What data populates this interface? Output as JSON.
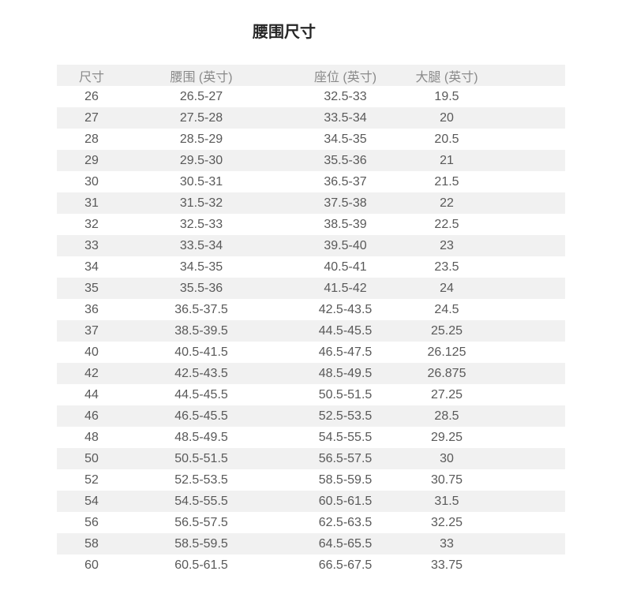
{
  "page": {
    "title": "腰围尺寸"
  },
  "colors": {
    "stripe_bg": "#f1f1f1",
    "header_text": "#8a8a8a",
    "body_text": "#595959",
    "title_text": "#262626"
  },
  "table": {
    "headers": [
      "尺寸",
      "腰围 (英寸)",
      "座位 (英寸)",
      "大腿 (英寸)"
    ],
    "rows": [
      [
        "26",
        "26.5-27",
        "32.5-33",
        "19.5"
      ],
      [
        "27",
        "27.5-28",
        "33.5-34",
        "20"
      ],
      [
        "28",
        "28.5-29",
        "34.5-35",
        "20.5"
      ],
      [
        "29",
        "29.5-30",
        "35.5-36",
        "21"
      ],
      [
        "30",
        "30.5-31",
        "36.5-37",
        "21.5"
      ],
      [
        "31",
        "31.5-32",
        "37.5-38",
        "22"
      ],
      [
        "32",
        "32.5-33",
        "38.5-39",
        "22.5"
      ],
      [
        "33",
        "33.5-34",
        "39.5-40",
        "23"
      ],
      [
        "34",
        "34.5-35",
        "40.5-41",
        "23.5"
      ],
      [
        "35",
        "35.5-36",
        "41.5-42",
        "24"
      ],
      [
        "36",
        "36.5-37.5",
        "42.5-43.5",
        "24.5"
      ],
      [
        "37",
        "38.5-39.5",
        "44.5-45.5",
        "25.25"
      ],
      [
        "40",
        "40.5-41.5",
        "46.5-47.5",
        "26.125"
      ],
      [
        "42",
        "42.5-43.5",
        "48.5-49.5",
        "26.875"
      ],
      [
        "44",
        "44.5-45.5",
        "50.5-51.5",
        "27.25"
      ],
      [
        "46",
        "46.5-45.5",
        "52.5-53.5",
        "28.5"
      ],
      [
        "48",
        "48.5-49.5",
        "54.5-55.5",
        "29.25"
      ],
      [
        "50",
        "50.5-51.5",
        "56.5-57.5",
        "30"
      ],
      [
        "52",
        "52.5-53.5",
        "58.5-59.5",
        "30.75"
      ],
      [
        "54",
        "54.5-55.5",
        "60.5-61.5",
        "31.5"
      ],
      [
        "56",
        "56.5-57.5",
        "62.5-63.5",
        "32.25"
      ],
      [
        "58",
        "58.5-59.5",
        "64.5-65.5",
        "33"
      ],
      [
        "60",
        "60.5-61.5",
        "66.5-67.5",
        "33.75"
      ]
    ]
  }
}
